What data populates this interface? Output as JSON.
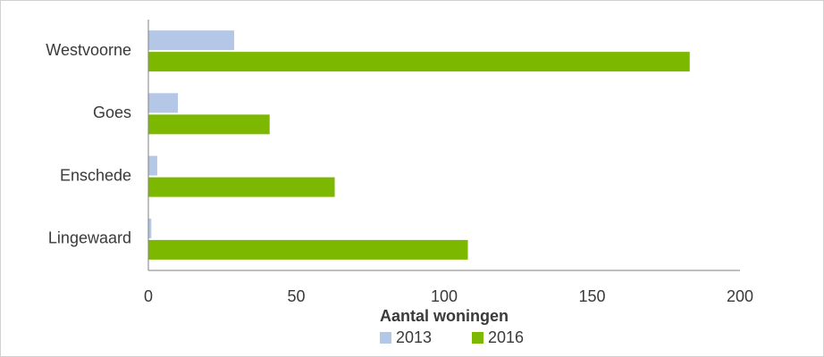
{
  "chart_data": {
    "type": "bar",
    "orientation": "horizontal",
    "x_label": "Aantal woningen",
    "categories": [
      "Westvoorne",
      "Goes",
      "Enschede",
      "Lingewaard"
    ],
    "series": [
      {
        "name": "2013",
        "color": "#b4c7e7",
        "values": [
          29,
          10,
          3,
          1
        ]
      },
      {
        "name": "2016",
        "color": "#7cb800",
        "values": [
          183,
          41,
          63,
          108
        ]
      }
    ],
    "xlim": [
      0,
      200
    ],
    "xticks": [
      0,
      50,
      100,
      150,
      200
    ],
    "grid": false,
    "legend": "bottom"
  }
}
